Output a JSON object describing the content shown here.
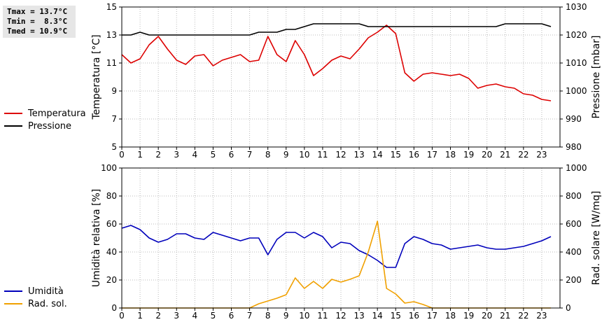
{
  "stats": {
    "tmax": "Tmax = 13.7°C",
    "tmin": "Tmin =  8.3°C",
    "tmed": "Tmed = 10.9°C"
  },
  "legend_top": [
    {
      "label": "Temperatura",
      "color": "#dd0000"
    },
    {
      "label": "Pressione",
      "color": "#000000"
    }
  ],
  "legend_bottom": [
    {
      "label": "Umidità",
      "color": "#0000bb"
    },
    {
      "label": "Rad. sol.",
      "color": "#f0a000"
    }
  ],
  "chart_data": [
    {
      "type": "line",
      "x_range": [
        0,
        24
      ],
      "x_ticks": [
        "0",
        "1",
        "2",
        "3",
        "4",
        "5",
        "6",
        "7",
        "8",
        "9",
        "10",
        "11",
        "12",
        "13",
        "14",
        "15",
        "16",
        "17",
        "18",
        "19",
        "20",
        "21",
        "22",
        "23"
      ],
      "ylabel": "Temperatura [°C]",
      "ylim": [
        5,
        15
      ],
      "y_ticks": [
        "5",
        "7",
        "9",
        "11",
        "13",
        "15"
      ],
      "y2label": "Pressione [mbar]",
      "y2lim": [
        980,
        1030
      ],
      "y2_ticks": [
        "980",
        "990",
        "1000",
        "1010",
        "1020",
        "1030"
      ],
      "grid": true,
      "series": [
        {
          "name": "Temperatura",
          "axis": "left",
          "color": "#dd0000",
          "x": [
            0,
            0.5,
            1,
            1.5,
            2,
            2.5,
            3,
            3.5,
            4,
            4.5,
            5,
            5.5,
            6,
            6.5,
            7,
            7.5,
            8,
            8.5,
            9,
            9.5,
            10,
            10.5,
            11,
            11.5,
            12,
            12.5,
            13,
            13.5,
            14,
            14.5,
            15,
            15.5,
            16,
            16.5,
            17,
            17.5,
            18,
            18.5,
            19,
            19.5,
            20,
            20.5,
            21,
            21.5,
            22,
            22.5,
            23,
            23.5
          ],
          "values": [
            11.6,
            11.0,
            11.3,
            12.3,
            12.9,
            12.0,
            11.2,
            10.9,
            11.5,
            11.6,
            10.8,
            11.2,
            11.4,
            11.6,
            11.1,
            11.2,
            12.9,
            11.6,
            11.1,
            12.6,
            11.6,
            10.1,
            10.6,
            11.2,
            11.5,
            11.3,
            12.0,
            12.8,
            13.2,
            13.7,
            13.1,
            10.3,
            9.7,
            10.2,
            10.3,
            10.2,
            10.1,
            10.2,
            9.9,
            9.2,
            9.4,
            9.5,
            9.3,
            9.2,
            8.8,
            8.7,
            8.4,
            8.3
          ]
        },
        {
          "name": "Pressione",
          "axis": "right",
          "color": "#000000",
          "x": [
            0,
            0.5,
            1,
            1.5,
            2,
            2.5,
            3,
            3.5,
            4,
            4.5,
            5,
            5.5,
            6,
            6.5,
            7,
            7.5,
            8,
            8.5,
            9,
            9.5,
            10,
            10.5,
            11,
            11.5,
            12,
            12.5,
            13,
            13.5,
            14,
            14.5,
            15,
            15.5,
            16,
            16.5,
            17,
            17.5,
            18,
            18.5,
            19,
            19.5,
            20,
            20.5,
            21,
            21.5,
            22,
            22.5,
            23,
            23.5
          ],
          "values": [
            1020,
            1020,
            1021,
            1020,
            1020,
            1020,
            1020,
            1020,
            1020,
            1020,
            1020,
            1020,
            1020,
            1020,
            1020,
            1021,
            1021,
            1021,
            1022,
            1022,
            1023,
            1024,
            1024,
            1024,
            1024,
            1024,
            1024,
            1023,
            1023,
            1023,
            1023,
            1023,
            1023,
            1023,
            1023,
            1023,
            1023,
            1023,
            1023,
            1023,
            1023,
            1023,
            1024,
            1024,
            1024,
            1024,
            1024,
            1023
          ]
        }
      ]
    },
    {
      "type": "line",
      "x_range": [
        0,
        24
      ],
      "x_ticks": [
        "0",
        "1",
        "2",
        "3",
        "4",
        "5",
        "6",
        "7",
        "8",
        "9",
        "10",
        "11",
        "12",
        "13",
        "14",
        "15",
        "16",
        "17",
        "18",
        "19",
        "20",
        "21",
        "22",
        "23"
      ],
      "ylabel": "Umidità relativa [%]",
      "ylim": [
        0,
        100
      ],
      "y_ticks": [
        "0",
        "20",
        "40",
        "60",
        "80",
        "100"
      ],
      "y2label": "Rad. solare [W/mq]",
      "y2lim": [
        0,
        1000
      ],
      "y2_ticks": [
        "0",
        "200",
        "400",
        "600",
        "800",
        "1000"
      ],
      "grid": true,
      "series": [
        {
          "name": "Umidità",
          "axis": "left",
          "color": "#0000bb",
          "x": [
            0,
            0.5,
            1,
            1.5,
            2,
            2.5,
            3,
            3.5,
            4,
            4.5,
            5,
            5.5,
            6,
            6.5,
            7,
            7.5,
            8,
            8.5,
            9,
            9.5,
            10,
            10.5,
            11,
            11.5,
            12,
            12.5,
            13,
            13.5,
            14,
            14.5,
            15,
            15.5,
            16,
            16.5,
            17,
            17.5,
            18,
            18.5,
            19,
            19.5,
            20,
            20.5,
            21,
            21.5,
            22,
            22.5,
            23,
            23.5
          ],
          "values": [
            57,
            59,
            56,
            50,
            47,
            49,
            53,
            53,
            50,
            49,
            54,
            52,
            50,
            48,
            50,
            50,
            38,
            49,
            54,
            54,
            50,
            54,
            51,
            43,
            47,
            46,
            41,
            38,
            34,
            29,
            29,
            46,
            51,
            49,
            46,
            45,
            42,
            43,
            44,
            45,
            43,
            42,
            42,
            43,
            44,
            46,
            48,
            51
          ]
        },
        {
          "name": "Rad. sol.",
          "axis": "right",
          "color": "#f0a000",
          "x": [
            0,
            0.5,
            1,
            1.5,
            2,
            2.5,
            3,
            3.5,
            4,
            4.5,
            5,
            5.5,
            6,
            6.5,
            7,
            7.5,
            8,
            8.5,
            9,
            9.5,
            10,
            10.5,
            11,
            11.5,
            12,
            12.5,
            13,
            13.5,
            14,
            14.5,
            15,
            15.5,
            16,
            16.5,
            17,
            17.5,
            18,
            18.5,
            19,
            19.5,
            20,
            20.5,
            21,
            21.5,
            22,
            22.5,
            23,
            23.5
          ],
          "values": [
            0,
            0,
            0,
            0,
            0,
            0,
            0,
            0,
            0,
            0,
            0,
            0,
            0,
            0,
            0,
            30,
            50,
            70,
            95,
            215,
            140,
            190,
            140,
            205,
            185,
            205,
            230,
            400,
            620,
            140,
            100,
            35,
            45,
            25,
            0,
            0,
            0,
            0,
            0,
            0,
            0,
            0,
            0,
            0,
            0,
            0,
            0,
            0
          ]
        }
      ]
    }
  ]
}
